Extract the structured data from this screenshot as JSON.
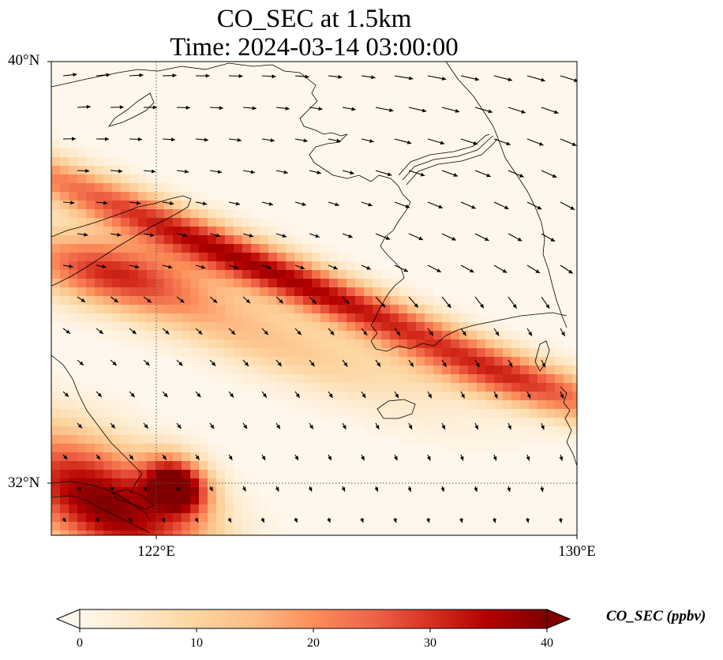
{
  "title_line1": "CO_SEC at 1.5km",
  "title_line2": "Time: 2024-03-14 03:00:00",
  "map": {
    "lon_range": [
      120,
      130
    ],
    "lat_range": [
      31,
      40
    ],
    "lat_labels": [
      "40°N",
      "32°N"
    ],
    "lon_labels": [
      "122°E",
      "130°E"
    ],
    "gridline_lat": 32,
    "gridline_lon": 122,
    "colormap": "OrRd",
    "plumes": [
      {
        "name": "band",
        "lon": 124.2,
        "lat": 36.0,
        "sigma_along": 4.4,
        "sigma_across": 0.32,
        "angle_deg": -23,
        "peak": 36
      },
      {
        "name": "band-west",
        "lon": 121.1,
        "lat": 36.0,
        "sigma_along": 1.2,
        "sigma_across": 0.45,
        "angle_deg": -10,
        "peak": 22
      },
      {
        "name": "secondary",
        "lon": 123.2,
        "lat": 35.1,
        "sigma_along": 2.6,
        "sigma_across": 0.45,
        "angle_deg": -22,
        "peak": 14
      },
      {
        "name": "southwest",
        "lon": 121.0,
        "lat": 31.6,
        "sigma_along": 1.5,
        "sigma_across": 0.7,
        "angle_deg": -30,
        "peak": 40
      },
      {
        "name": "hotspot",
        "lon": 122.4,
        "lat": 31.95,
        "sigma_along": 0.45,
        "sigma_across": 0.35,
        "angle_deg": -30,
        "peak": 40
      },
      {
        "name": "east-tail",
        "lon": 128.8,
        "lat": 33.9,
        "sigma_along": 1.6,
        "sigma_across": 0.35,
        "angle_deg": -12,
        "peak": 13
      }
    ]
  },
  "colorbar": {
    "label": "CO_SEC (ppbv)",
    "ticks": [
      "0",
      "10",
      "20",
      "30",
      "40"
    ],
    "min": 0,
    "max": 40
  }
}
